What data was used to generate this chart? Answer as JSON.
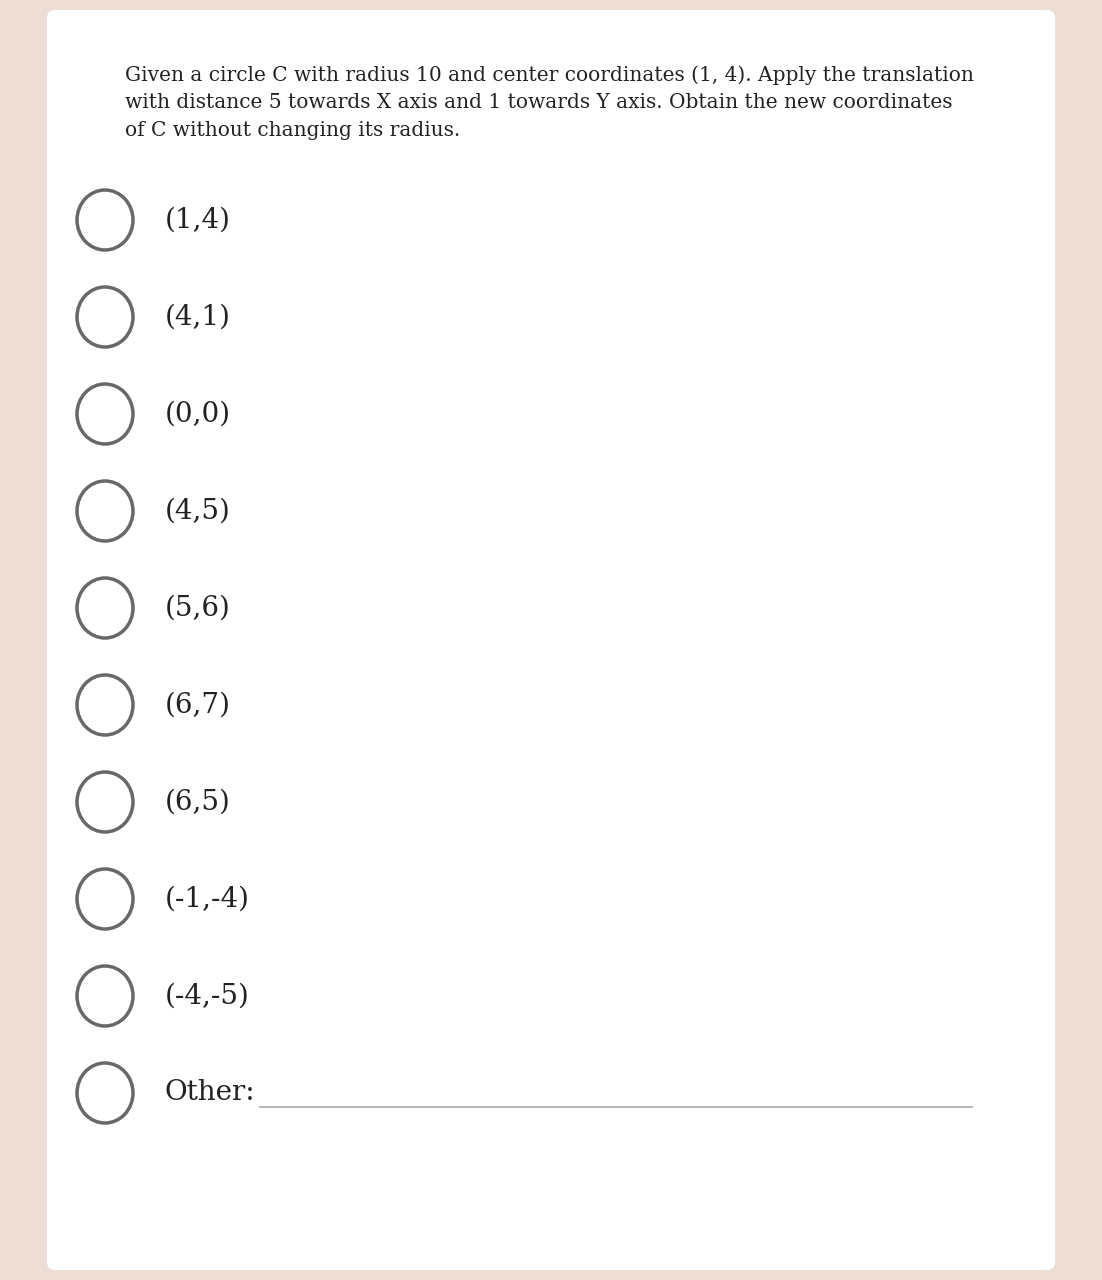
{
  "question_text_lines": [
    "Given a circle C with radius 10 and center coordinates (1, 4). Apply the translation",
    "with distance 5 towards X axis and 1 towards Y axis. Obtain the new coordinates",
    "of C without changing its radius."
  ],
  "options": [
    "(1,4)",
    "(4,1)",
    "(0,0)",
    "(4,5)",
    "(5,6)",
    "(6,7)",
    "(6,5)",
    "(-1,-4)",
    "(-4,-5)",
    "Other:"
  ],
  "bg_color": "#ffffff",
  "panel_color": "#edddd4",
  "text_color": "#222222",
  "circle_edge_color": "#686868",
  "question_font_size": 14.5,
  "option_font_size": 20,
  "other_font_size": 20,
  "circle_linewidth": 2.5,
  "other_line_color": "#aaaaaa",
  "fig_width": 11.02,
  "fig_height": 12.8,
  "dpi": 100
}
